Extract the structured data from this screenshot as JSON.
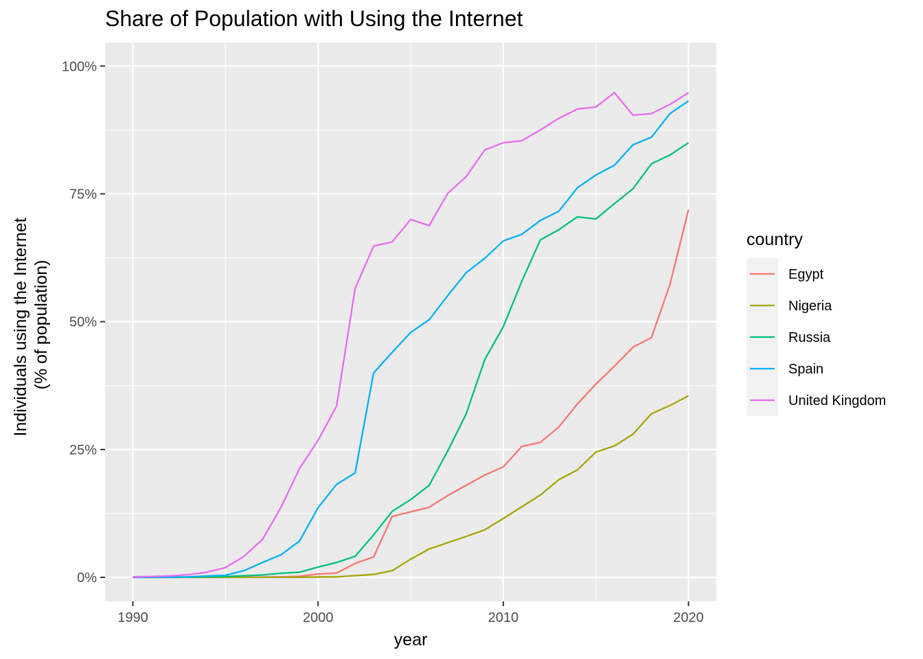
{
  "chart_data": {
    "type": "line",
    "title": "Share of Population with Using the Internet",
    "xlabel": "year",
    "ylabel_lines": [
      "Individuals using the Internet",
      "(% of population)"
    ],
    "xlim": [
      1988.5,
      2021.5
    ],
    "ylim": [
      -4.7,
      104.6
    ],
    "x_ticks": [
      1990,
      2000,
      2010,
      2020
    ],
    "x_minor_ticks": [
      1995,
      2005,
      2015
    ],
    "y_ticks": [
      0,
      25,
      50,
      75,
      100
    ],
    "y_tick_labels": [
      "0%",
      "25%",
      "50%",
      "75%",
      "100%"
    ],
    "y_minor_ticks": [
      12.5,
      37.5,
      62.5,
      87.5
    ],
    "grid": true,
    "legend": {
      "title": "country",
      "position": "right"
    },
    "x": [
      1990,
      1991,
      1992,
      1993,
      1994,
      1995,
      1996,
      1997,
      1998,
      1999,
      2000,
      2001,
      2002,
      2003,
      2004,
      2005,
      2006,
      2007,
      2008,
      2009,
      2010,
      2011,
      2012,
      2013,
      2014,
      2015,
      2016,
      2017,
      2018,
      2019,
      2020
    ],
    "series": [
      {
        "name": "Egypt",
        "color": "#F8766D",
        "values": [
          0,
          0,
          0,
          0,
          0,
          0,
          0.03,
          0.05,
          0.1,
          0.2,
          0.64,
          0.84,
          2.7,
          4.0,
          11.9,
          12.8,
          13.7,
          16.0,
          18.0,
          20.0,
          21.6,
          25.6,
          26.4,
          29.4,
          33.9,
          37.8,
          41.3,
          45.0,
          46.9,
          57.3,
          71.9
        ]
      },
      {
        "name": "Nigeria",
        "color": "#A3A500",
        "values": [
          0,
          0,
          0,
          0,
          0,
          0,
          0,
          0,
          0,
          0.01,
          0.06,
          0.09,
          0.32,
          0.56,
          1.29,
          3.55,
          5.55,
          6.77,
          8.0,
          9.3,
          11.5,
          13.8,
          16.1,
          19.1,
          21.0,
          24.5,
          25.7,
          28.0,
          32.0,
          33.6,
          35.5
        ]
      },
      {
        "name": "Russia",
        "color": "#00BF7D",
        "values": [
          0,
          0,
          0,
          0.02,
          0.08,
          0.15,
          0.3,
          0.45,
          0.8,
          1.0,
          2.0,
          2.9,
          4.1,
          8.3,
          12.9,
          15.2,
          18.0,
          24.7,
          32.0,
          42.6,
          49.0,
          57.9,
          66.0,
          68.0,
          70.5,
          70.1,
          73.1,
          76.0,
          80.9,
          82.6,
          85.0
        ]
      },
      {
        "name": "Spain",
        "color": "#00B0F6",
        "values": [
          0,
          0.01,
          0.03,
          0.1,
          0.25,
          0.4,
          1.3,
          2.9,
          4.4,
          7.1,
          13.6,
          18.2,
          20.4,
          40.0,
          44.0,
          47.9,
          50.4,
          55.1,
          59.6,
          62.4,
          65.8,
          67.1,
          69.8,
          71.6,
          76.2,
          78.7,
          80.6,
          84.6,
          86.1,
          90.7,
          93.2
        ]
      },
      {
        "name": "United Kingdom",
        "color": "#E76BF3",
        "values": [
          0.09,
          0.17,
          0.26,
          0.52,
          1.0,
          1.9,
          4.1,
          7.4,
          13.7,
          21.3,
          26.8,
          33.5,
          56.5,
          64.8,
          65.6,
          70.0,
          68.8,
          75.1,
          78.4,
          83.6,
          85.0,
          85.4,
          87.5,
          89.8,
          91.6,
          92.0,
          94.8,
          90.4,
          90.7,
          92.5,
          94.8
        ]
      }
    ]
  }
}
